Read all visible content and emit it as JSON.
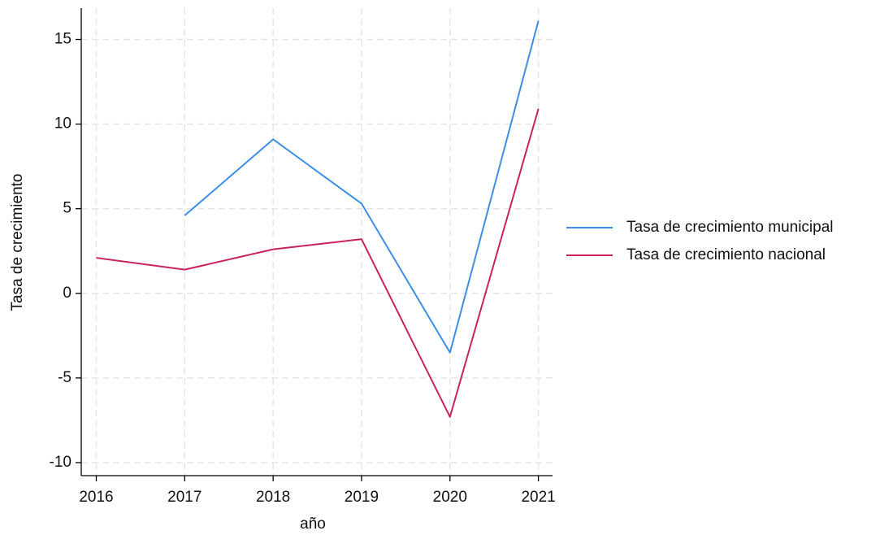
{
  "chart_data": {
    "type": "line",
    "x": [
      2016,
      2017,
      2018,
      2019,
      2020,
      2021
    ],
    "series": [
      {
        "name": "Tasa de crecimiento municipal",
        "color": "#3d8fe6",
        "values": [
          null,
          4.6,
          9.1,
          5.3,
          -3.5,
          16.1
        ]
      },
      {
        "name": "Tasa de crecimiento nacional",
        "color": "#c9245c",
        "values": [
          2.1,
          1.4,
          2.6,
          3.2,
          -7.3,
          10.9
        ]
      }
    ],
    "xlabel": "año",
    "ylabel": "Tasa de crecimiento",
    "xlim": [
      2015.83,
      2021.16
    ],
    "xticks": [
      2016,
      2017,
      2018,
      2019,
      2020,
      2021
    ],
    "ylim": [
      -10.77,
      16.85
    ],
    "yticks": [
      -10,
      -5,
      0,
      5,
      10,
      15
    ],
    "grid": true,
    "legend": "right"
  }
}
